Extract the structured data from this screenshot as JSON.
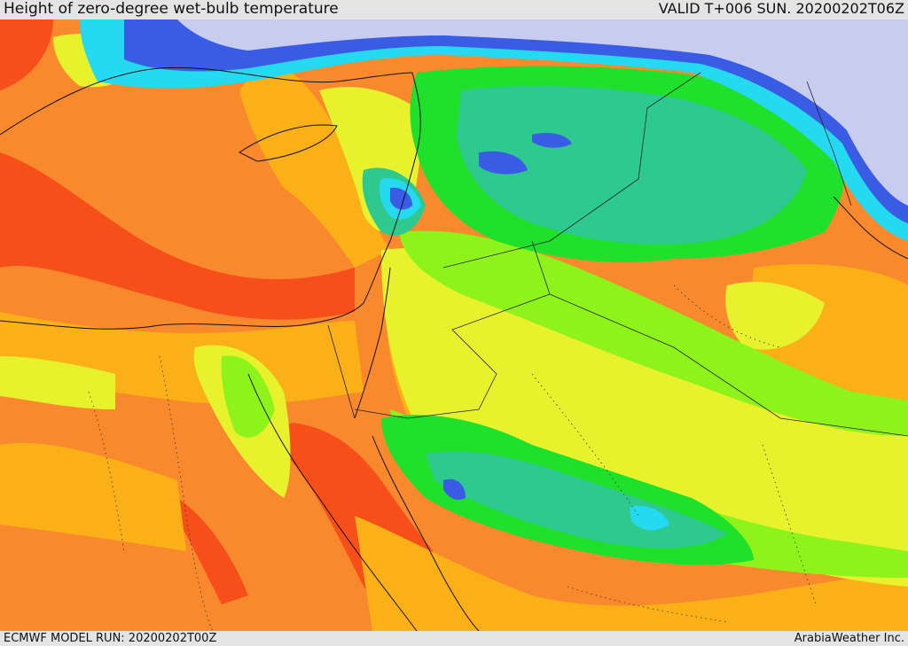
{
  "header": {
    "title": "Height of zero-degree wet-bulb temperature",
    "valid": "VALID T+006 SUN. 20200202T06Z"
  },
  "footer": {
    "model_run": "ECMWF MODEL RUN: 20200202T00Z",
    "brand": "ArabiaWeather Inc."
  },
  "palette": {
    "deep_red": "#f64f19",
    "orange": "#f9892d",
    "amber": "#fbb017",
    "yellow": "#e8f22c",
    "lime": "#8ef21b",
    "green": "#1fe02a",
    "teal": "#2ec98e",
    "cyan": "#25d9f0",
    "blue": "#3a5ce4",
    "lavender": "#c8cdf0"
  }
}
